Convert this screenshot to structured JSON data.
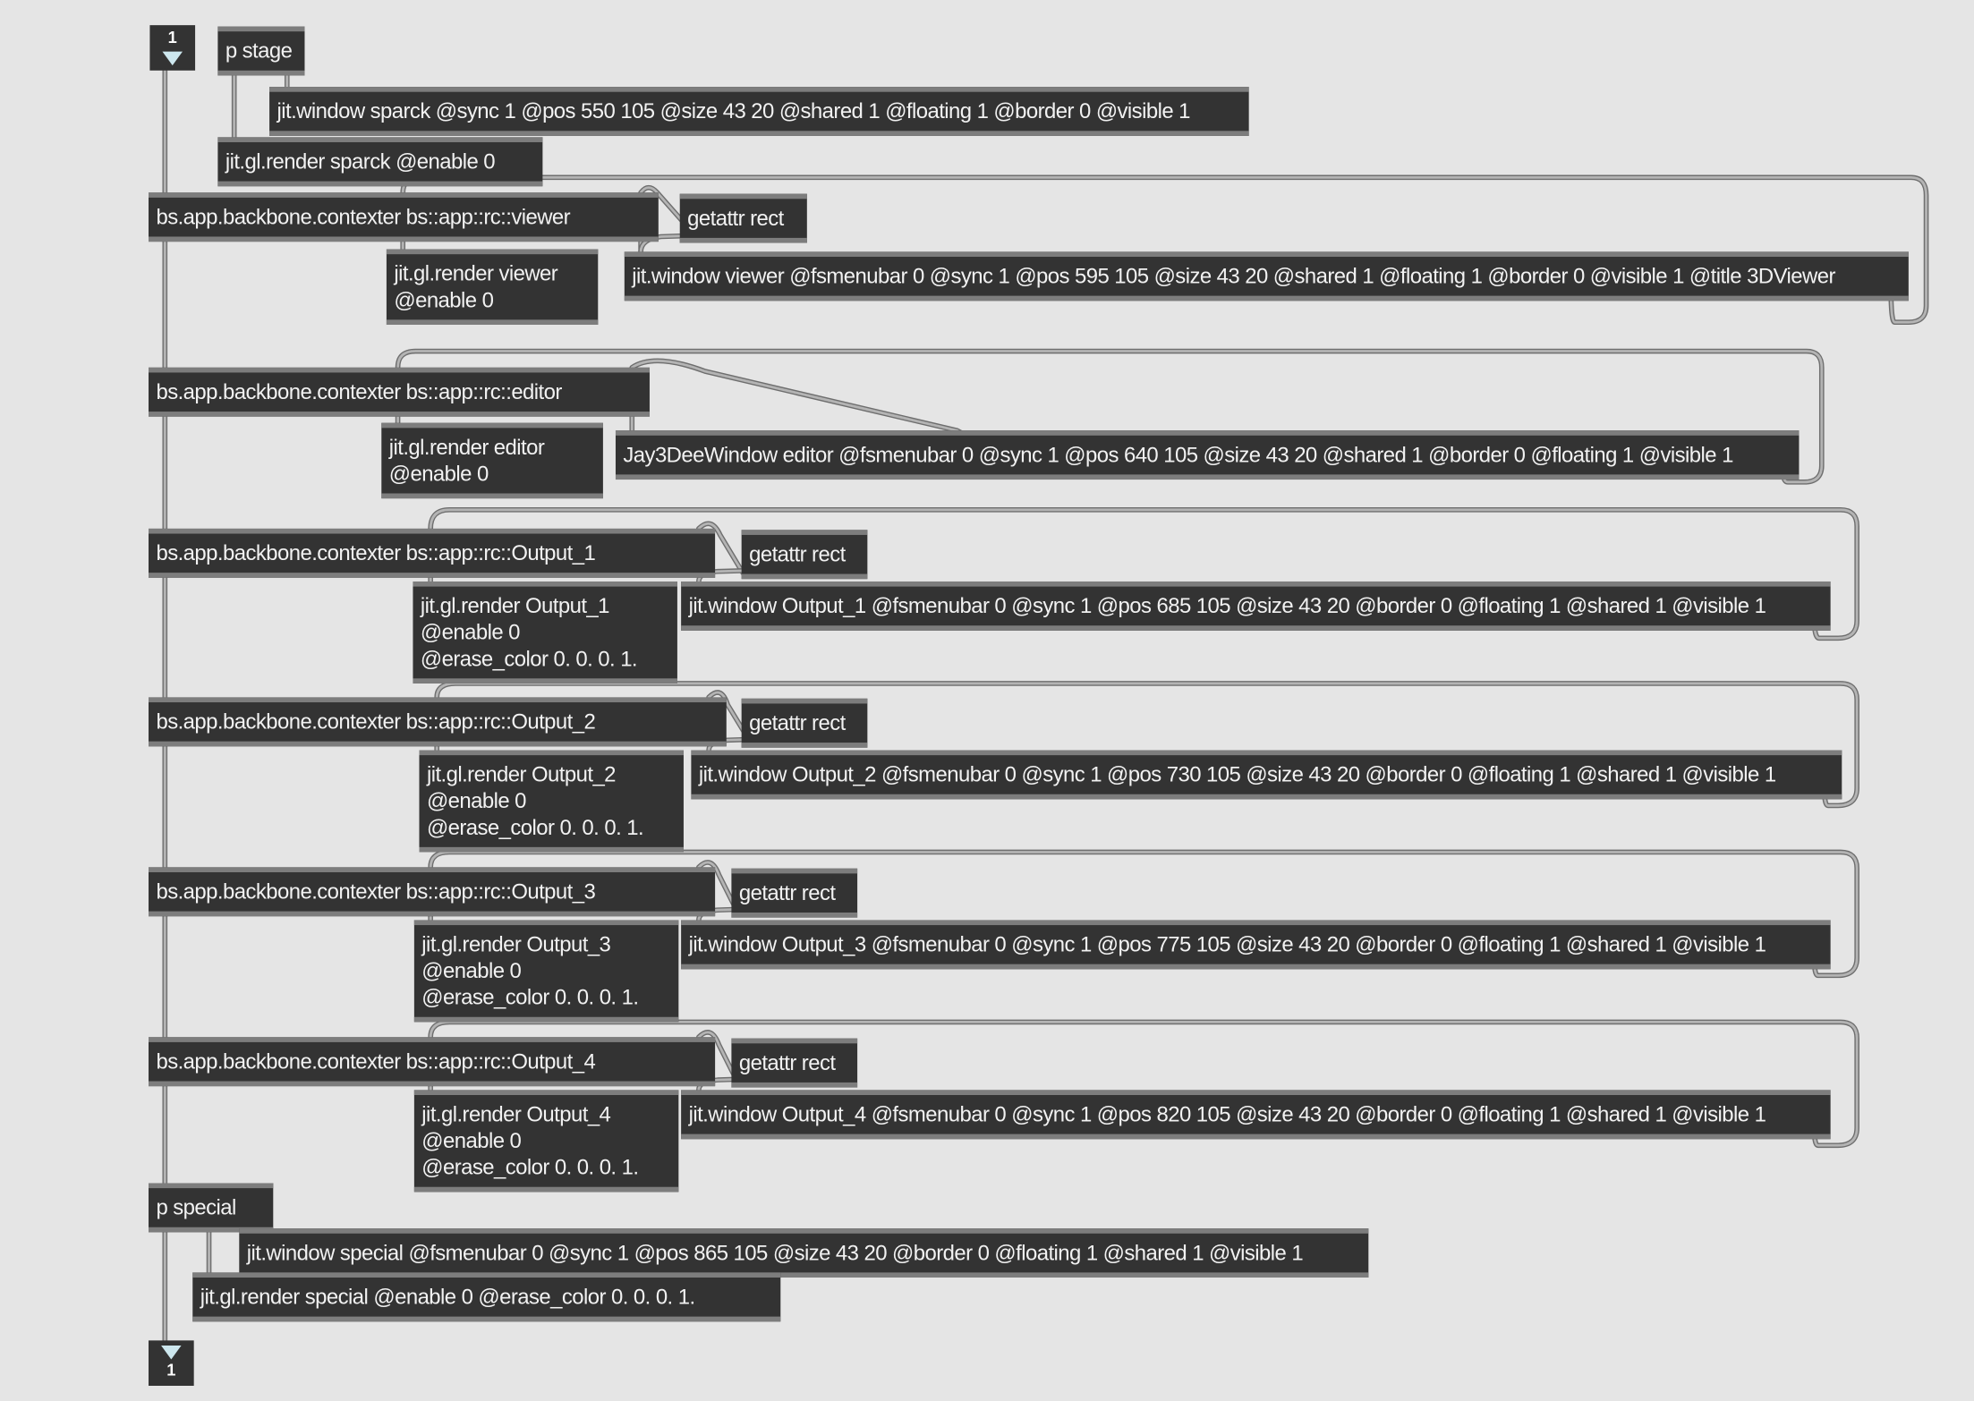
{
  "inlet": {
    "label": "1",
    "icon": "triangle-down-icon"
  },
  "outlet": {
    "label": "1",
    "icon": "triangle-down-icon"
  },
  "objects": [
    {
      "id": "p-stage",
      "lines": [
        "p stage"
      ]
    },
    {
      "id": "jit-window-sparck",
      "lines": [
        "jit.window sparck @sync 1 @pos 550 105 @size 43 20 @shared 1 @floating 1 @border 0 @visible 1"
      ]
    },
    {
      "id": "jit-gl-render-sparck",
      "lines": [
        "jit.gl.render sparck @enable 0"
      ]
    },
    {
      "id": "contexter-viewer",
      "lines": [
        "bs.app.backbone.contexter bs::app::rc::viewer"
      ]
    },
    {
      "id": "getattr-rect-viewer",
      "lines": [
        "getattr rect"
      ]
    },
    {
      "id": "jit-gl-render-viewer",
      "lines": [
        "jit.gl.render viewer",
        "@enable 0"
      ]
    },
    {
      "id": "jit-window-viewer",
      "lines": [
        "jit.window viewer @fsmenubar 0 @sync 1 @pos 595 105 @size 43 20 @shared 1 @floating 1 @border 0 @visible 1 @title 3DViewer"
      ]
    },
    {
      "id": "contexter-editor",
      "lines": [
        "bs.app.backbone.contexter bs::app::rc::editor"
      ]
    },
    {
      "id": "jit-gl-render-editor",
      "lines": [
        "jit.gl.render editor",
        "@enable 0"
      ]
    },
    {
      "id": "jay3deewindow-editor",
      "lines": [
        "Jay3DeeWindow editor @fsmenubar 0 @sync 1 @pos 640 105 @size 43 20 @shared 1 @border 0 @floating 1 @visible 1"
      ]
    },
    {
      "id": "contexter-output-1",
      "lines": [
        "bs.app.backbone.contexter bs::app::rc::Output_1"
      ]
    },
    {
      "id": "getattr-rect-output-1",
      "lines": [
        "getattr rect"
      ]
    },
    {
      "id": "jit-gl-render-output-1",
      "lines": [
        "jit.gl.render Output_1",
        "@enable 0",
        "@erase_color 0. 0. 0. 1."
      ]
    },
    {
      "id": "jit-window-output-1",
      "lines": [
        "jit.window Output_1 @fsmenubar 0 @sync 1 @pos 685 105 @size 43 20 @border 0 @floating 1 @shared 1 @visible 1"
      ]
    },
    {
      "id": "contexter-output-2",
      "lines": [
        "bs.app.backbone.contexter bs::app::rc::Output_2"
      ]
    },
    {
      "id": "getattr-rect-output-2",
      "lines": [
        "getattr rect"
      ]
    },
    {
      "id": "jit-gl-render-output-2",
      "lines": [
        "jit.gl.render Output_2",
        "@enable 0",
        "@erase_color 0. 0. 0. 1."
      ]
    },
    {
      "id": "jit-window-output-2",
      "lines": [
        "jit.window Output_2 @fsmenubar 0 @sync 1 @pos 730 105 @size 43 20 @border 0 @floating 1 @shared 1 @visible 1"
      ]
    },
    {
      "id": "contexter-output-3",
      "lines": [
        "bs.app.backbone.contexter bs::app::rc::Output_3"
      ]
    },
    {
      "id": "getattr-rect-output-3",
      "lines": [
        "getattr rect"
      ]
    },
    {
      "id": "jit-gl-render-output-3",
      "lines": [
        "jit.gl.render Output_3",
        "@enable 0",
        "@erase_color 0. 0. 0. 1."
      ]
    },
    {
      "id": "jit-window-output-3",
      "lines": [
        "jit.window Output_3 @fsmenubar 0 @sync 1 @pos 775 105 @size 43 20 @border 0 @floating 1 @shared 1 @visible 1"
      ]
    },
    {
      "id": "contexter-output-4",
      "lines": [
        "bs.app.backbone.contexter bs::app::rc::Output_4"
      ]
    },
    {
      "id": "getattr-rect-output-4",
      "lines": [
        "getattr rect"
      ]
    },
    {
      "id": "jit-gl-render-output-4",
      "lines": [
        "jit.gl.render Output_4",
        "@enable 0",
        "@erase_color 0. 0. 0. 1."
      ]
    },
    {
      "id": "jit-window-output-4",
      "lines": [
        "jit.window Output_4 @fsmenubar 0 @sync 1 @pos 820 105 @size 43 20 @border 0 @floating 1 @shared 1 @visible 1"
      ]
    },
    {
      "id": "p-special",
      "lines": [
        "p special"
      ]
    },
    {
      "id": "jit-window-special",
      "lines": [
        "jit.window special @fsmenubar 0 @sync 1 @pos 865 105 @size 43 20 @border 0 @floating 1 @shared 1 @visible 1"
      ]
    },
    {
      "id": "jit-gl-render-special",
      "lines": [
        "jit.gl.render special @enable 0 @erase_color 0. 0. 0. 1."
      ]
    }
  ],
  "colors": {
    "canvas": "#e5e5e5",
    "object": "#333333",
    "object_border": "#7d7d7d",
    "cord": "#9a9a9a",
    "inlet_port": "#f0a090",
    "outlet_port": "#e0e070",
    "render_inlet": "#8fd0e0"
  }
}
